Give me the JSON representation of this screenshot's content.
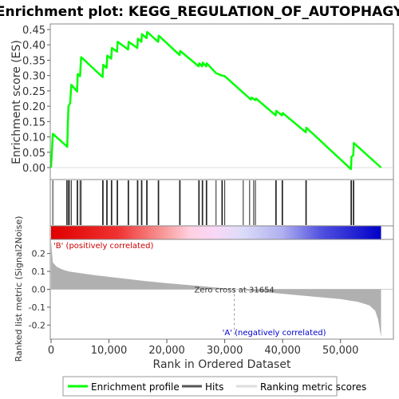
{
  "chart_data": {
    "type": "line",
    "title": "Enrichment plot: KEGG_REGULATION_OF_AUTOPHAGY",
    "enrichment_panel": {
      "ylabel": "Enrichment score (ES)",
      "ylim": [
        0,
        0.45
      ],
      "yticks": [
        0.0,
        0.05,
        0.1,
        0.15,
        0.2,
        0.25,
        0.3,
        0.35,
        0.4,
        0.45
      ],
      "ytick_labels": [
        "0.00",
        "0.05",
        "0.10",
        "0.15",
        "0.20",
        "0.25",
        "0.30",
        "0.35",
        "0.40",
        "0.45"
      ],
      "series": [
        {
          "name": "Enrichment profile",
          "color": "#00ff00",
          "points": [
            [
              0,
              0.0
            ],
            [
              300,
              0.11
            ],
            [
              2800,
              0.068
            ],
            [
              2900,
              0.14
            ],
            [
              3000,
              0.2
            ],
            [
              3300,
              0.21
            ],
            [
              3500,
              0.27
            ],
            [
              4500,
              0.248
            ],
            [
              4600,
              0.305
            ],
            [
              5000,
              0.298
            ],
            [
              5200,
              0.36
            ],
            [
              8900,
              0.295
            ],
            [
              9000,
              0.335
            ],
            [
              9600,
              0.325
            ],
            [
              9700,
              0.365
            ],
            [
              10400,
              0.355
            ],
            [
              10500,
              0.39
            ],
            [
              11400,
              0.378
            ],
            [
              11500,
              0.41
            ],
            [
              13300,
              0.385
            ],
            [
              13400,
              0.41
            ],
            [
              14900,
              0.39
            ],
            [
              15000,
              0.42
            ],
            [
              15600,
              0.41
            ],
            [
              15700,
              0.435
            ],
            [
              16500,
              0.422
            ],
            [
              16600,
              0.442
            ],
            [
              18500,
              0.41
            ],
            [
              18600,
              0.43
            ],
            [
              22200,
              0.367
            ],
            [
              22300,
              0.38
            ],
            [
              25500,
              0.33
            ],
            [
              25600,
              0.34
            ],
            [
              26100,
              0.33
            ],
            [
              26200,
              0.342
            ],
            [
              26800,
              0.33
            ],
            [
              26900,
              0.34
            ],
            [
              28500,
              0.308
            ],
            [
              29500,
              0.3
            ],
            [
              29600,
              0.3
            ],
            [
              30000,
              0.298
            ],
            [
              34500,
              0.222
            ],
            [
              34600,
              0.228
            ],
            [
              35300,
              0.22
            ],
            [
              35400,
              0.225
            ],
            [
              38800,
              0.17
            ],
            [
              38900,
              0.185
            ],
            [
              39900,
              0.17
            ],
            [
              40000,
              0.178
            ],
            [
              44000,
              0.115
            ],
            [
              44100,
              0.13
            ],
            [
              51800,
              -0.005
            ],
            [
              51900,
              0.035
            ],
            [
              52200,
              0.04
            ],
            [
              52300,
              0.08
            ],
            [
              57000,
              0.0
            ]
          ]
        }
      ]
    },
    "hits_panel": {
      "name": "Hits",
      "positions": [
        300,
        2700,
        2900,
        3000,
        3200,
        3500,
        4500,
        4600,
        5000,
        5200,
        8900,
        9000,
        9600,
        9700,
        10400,
        10500,
        11400,
        11500,
        13300,
        13400,
        14900,
        15000,
        15600,
        15700,
        16500,
        16600,
        18500,
        18600,
        22200,
        22300,
        25500,
        25600,
        26100,
        26200,
        26800,
        26900,
        28500,
        29500,
        29600,
        30000,
        33200,
        34300,
        35000,
        35300,
        38800,
        38900,
        39900,
        40000,
        44000,
        44100,
        51800,
        51900,
        52200,
        52300
      ]
    },
    "ranked_metric_panel": {
      "ylabel": "Ranked list metric (Signal2Noise)",
      "ylim": [
        -0.27,
        0.27
      ],
      "yticks": [
        -0.2,
        -0.1,
        0.0,
        0.1,
        0.2
      ],
      "ytick_labels": [
        "-0.2",
        "-0.1",
        "0.0",
        "0.1",
        "0.2"
      ],
      "points": [
        [
          0,
          0.27
        ],
        [
          300,
          0.15
        ],
        [
          1000,
          0.125
        ],
        [
          2000,
          0.11
        ],
        [
          3000,
          0.1
        ],
        [
          5000,
          0.09
        ],
        [
          8000,
          0.077
        ],
        [
          12000,
          0.062
        ],
        [
          16000,
          0.047
        ],
        [
          20000,
          0.034
        ],
        [
          25000,
          0.02
        ],
        [
          28000,
          0.011
        ],
        [
          31654,
          0.0
        ],
        [
          35000,
          -0.011
        ],
        [
          40000,
          -0.025
        ],
        [
          45000,
          -0.04
        ],
        [
          50000,
          -0.055
        ],
        [
          53000,
          -0.07
        ],
        [
          55000,
          -0.09
        ],
        [
          56000,
          -0.12
        ],
        [
          56500,
          -0.17
        ],
        [
          57000,
          -0.27
        ]
      ],
      "annotations": {
        "positive": "'B' (positively correlated)",
        "negative": "'A' (negatively correlated)",
        "zero_cross": "Zero cross at 31654"
      },
      "zero_cross": 31654
    },
    "x_axis": {
      "label": "Rank in Ordered Dataset",
      "xlim": [
        0,
        59000
      ],
      "max_rank": 57000,
      "ticks": [
        0,
        10000,
        20000,
        30000,
        40000,
        50000
      ],
      "tick_labels": [
        "0",
        "10,000",
        "20,000",
        "30,000",
        "40,000",
        "50,000"
      ]
    },
    "legend": {
      "placement": "bottom",
      "items": [
        {
          "label": "Enrichment profile",
          "color": "#00ff00"
        },
        {
          "label": "Hits",
          "color": "#000000"
        },
        {
          "label": "Ranking metric scores",
          "color": "#c0c0c0"
        }
      ]
    },
    "colors": {
      "positive": "#ff0000",
      "negative": "#0000ff",
      "neutral": "#ffffff",
      "metric_fill": "#b0b0b0",
      "zero_line": "#cccccc"
    }
  }
}
